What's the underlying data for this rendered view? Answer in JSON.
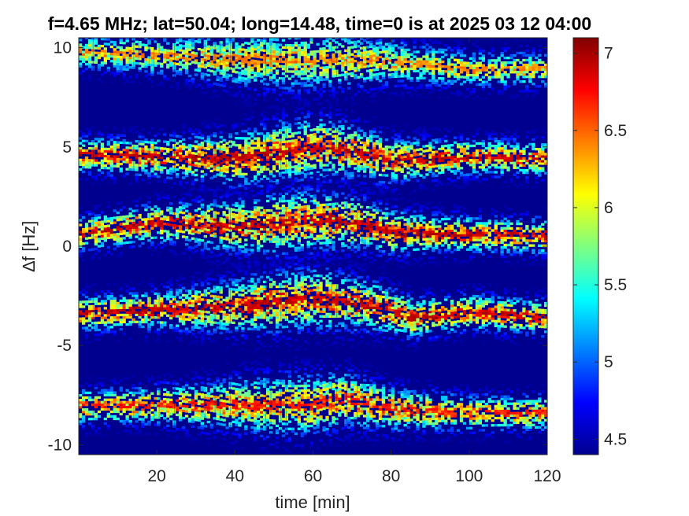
{
  "chart_data": {
    "type": "heatmap",
    "title": "f=4.65 MHz;  lat=50.04; long=14.48, time=0 is at 2025 03 12 04:00",
    "xlabel": "time [min]",
    "ylabel": "∆f [Hz]",
    "xlim": [
      0,
      120
    ],
    "ylim": [
      -10.5,
      10.5
    ],
    "x_ticks": [
      20,
      40,
      60,
      80,
      100,
      120
    ],
    "x_tick_labels": [
      "20",
      "40",
      "60",
      "80",
      "100",
      "120"
    ],
    "y_ticks": [
      -10,
      -5,
      0,
      5,
      10
    ],
    "y_tick_labels": [
      "-10",
      "-5",
      "0",
      "5",
      "10"
    ],
    "colorbar": {
      "colormap": "jet",
      "clim": [
        4.4,
        7.1
      ],
      "ticks": [
        4.5,
        5,
        5.5,
        6,
        6.5,
        7
      ],
      "tick_labels": [
        "4.5",
        "5",
        "5.5",
        "6",
        "6.5",
        "7"
      ]
    },
    "background_level": 4.45,
    "traces": [
      {
        "name": "",
        "time": [
          0,
          20,
          40,
          60,
          80,
          100,
          120
        ],
        "delta_f": [
          9.8,
          9.6,
          9.4,
          9.4,
          9.3,
          8.9,
          8.9
        ],
        "peak_level": 6.5
      },
      {
        "name": "",
        "time": [
          0,
          20,
          40,
          60,
          70,
          80,
          100,
          120
        ],
        "delta_f": [
          4.6,
          4.5,
          4.4,
          5.0,
          4.8,
          4.3,
          4.5,
          4.4
        ],
        "peak_level": 7.0
      },
      {
        "name": "",
        "time": [
          0,
          20,
          40,
          60,
          70,
          80,
          100,
          120
        ],
        "delta_f": [
          0.6,
          1.2,
          1.0,
          1.3,
          1.2,
          0.7,
          0.6,
          0.5
        ],
        "peak_level": 7.0
      },
      {
        "name": "",
        "time": [
          0,
          20,
          40,
          60,
          75,
          85,
          100,
          120
        ],
        "delta_f": [
          -3.4,
          -3.2,
          -3.0,
          -2.6,
          -3.0,
          -3.6,
          -3.3,
          -3.6
        ],
        "peak_level": 7.0
      },
      {
        "name": "",
        "time": [
          0,
          20,
          40,
          60,
          68,
          80,
          100,
          120
        ],
        "delta_f": [
          -8.1,
          -8.0,
          -8.0,
          -8.0,
          -7.7,
          -8.2,
          -8.4,
          -8.4
        ],
        "peak_level": 6.8
      }
    ]
  }
}
